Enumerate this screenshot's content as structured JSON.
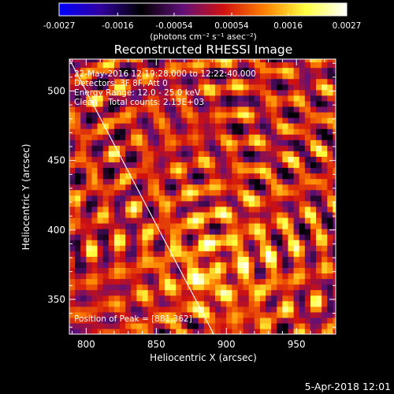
{
  "chart_data": {
    "type": "heatmap",
    "title": "Reconstructed RHESSI Image",
    "xlabel": "Heliocentric X (arcsec)",
    "ylabel": "Heliocentric Y (arcsec)",
    "xlim": [
      788,
      978
    ],
    "ylim": [
      325,
      523
    ],
    "x_ticks": [
      800,
      850,
      900,
      950
    ],
    "y_ticks": [
      350,
      400,
      450,
      500
    ],
    "colorbar": {
      "range": [
        -0.0027,
        0.0027
      ],
      "tick_values": [
        -0.0027,
        -0.0016,
        -0.00054,
        0.00054,
        0.0016,
        0.0027
      ],
      "tick_labels": [
        "-0.0027",
        "-0.0016",
        "-0.00054",
        "0.00054",
        "0.0016",
        "0.0027"
      ],
      "units_label": "(photons cm⁻² s⁻¹ asec⁻²)"
    },
    "annotations": {
      "time_range": "22-May-2016 12:19:28.000 to 12:22:40.000",
      "detectors": "Detectors: 3F 8F, Att 0",
      "energy_range": "Energy Range: 12.0 - 25.0 keV",
      "method_counts": "Clean    Total counts: 2.13E+03",
      "peak_position": "Position of Peak = [881,362]"
    },
    "peak": [
      881,
      362
    ],
    "limb_line": {
      "from": [
        788,
        523
      ],
      "to": [
        891,
        325
      ]
    },
    "pixel_size_arcsec": 4,
    "colormap": [
      "#0000ff",
      "#3000a0",
      "#000000",
      "#60107a",
      "#d01010",
      "#ff8000",
      "#ffff40",
      "#ffffff"
    ]
  },
  "footer": {
    "date": "5-Apr-2018 12:01"
  }
}
